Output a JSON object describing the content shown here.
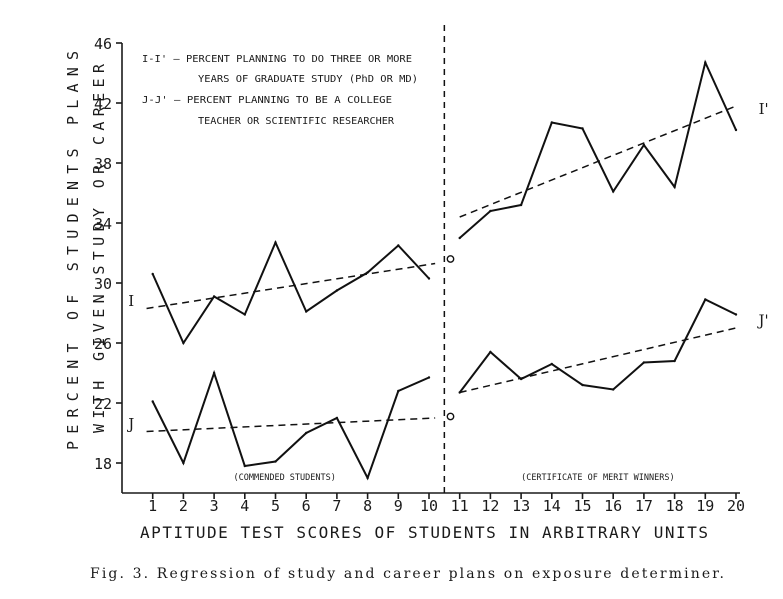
{
  "chart_data": {
    "type": "line",
    "ylabel_lines": [
      "PERCENT OF STUDENTS PLANS",
      "WITH GIVEN STUDY OR CAREER"
    ],
    "xlabel": "APTITUDE TEST SCORES OF STUDENTS IN ARBITRARY UNITS",
    "caption": "Fig. 3. Regression of study and career plans on exposure determiner.",
    "ylim": [
      16,
      46
    ],
    "yticks": [
      18,
      22,
      26,
      30,
      34,
      38,
      42,
      46
    ],
    "xlim": [
      0,
      20.3
    ],
    "xticks": [
      1,
      2,
      3,
      4,
      5,
      6,
      7,
      8,
      9,
      10,
      11,
      12,
      13,
      14,
      15,
      16,
      17,
      18,
      19,
      20
    ],
    "divider_x": 10.5,
    "legend": [
      "I-I' — PERCENT PLANNING TO DO THREE OR MORE",
      "YEARS OF GRADUATE STUDY (PhD OR MD)",
      "J-J' — PERCENT PLANNING TO BE A COLLEGE",
      "TEACHER OR SCIENTIFIC RESEARCHER"
    ],
    "group_labels": [
      {
        "text": "(COMMENDED STUDENTS)",
        "x": 5.3
      },
      {
        "text": "(CERTIFICATE OF MERIT WINNERS)",
        "x": 15.5
      }
    ],
    "series": [
      {
        "name": "I",
        "label": "I",
        "label_at": {
          "x": 0.3,
          "y": 28.8
        },
        "x": [
          1,
          2,
          3,
          4,
          5,
          6,
          7,
          8,
          9,
          10
        ],
        "values": [
          30.6,
          26.0,
          29.1,
          27.9,
          32.7,
          28.1,
          29.5,
          30.7,
          32.5,
          30.3
        ],
        "trend": [
          [
            0.8,
            28.3
          ],
          [
            10.2,
            31.3
          ]
        ]
      },
      {
        "name": "I'",
        "label": "I'",
        "label_at": {
          "x": 20.9,
          "y": 41.6
        },
        "x": [
          11,
          12,
          13,
          14,
          15,
          16,
          17,
          18,
          19,
          20
        ],
        "values": [
          33.0,
          34.8,
          35.2,
          40.7,
          40.3,
          36.1,
          39.2,
          36.4,
          44.7,
          40.2
        ],
        "trend": [
          [
            11.0,
            34.4
          ],
          [
            20.0,
            41.8
          ]
        ]
      },
      {
        "name": "J",
        "label": "J",
        "label_at": {
          "x": 0.3,
          "y": 20.6
        },
        "x": [
          1,
          2,
          3,
          4,
          5,
          6,
          7,
          8,
          9,
          10
        ],
        "values": [
          22.1,
          18.0,
          24.0,
          17.8,
          18.1,
          20.0,
          21.0,
          17.0,
          22.8,
          23.7
        ],
        "trend": [
          [
            0.8,
            20.1
          ],
          [
            10.2,
            21.0
          ]
        ]
      },
      {
        "name": "J'",
        "label": "J'",
        "label_at": {
          "x": 20.9,
          "y": 27.5
        },
        "x": [
          11,
          12,
          13,
          14,
          15,
          16,
          17,
          18,
          19,
          20
        ],
        "values": [
          22.7,
          25.4,
          23.6,
          24.6,
          23.2,
          22.9,
          24.7,
          24.8,
          28.9,
          27.9
        ],
        "trend": [
          [
            11.0,
            22.7
          ],
          [
            20.0,
            27.0
          ]
        ]
      }
    ],
    "markers": [
      {
        "name": "i-intercept-marker",
        "x": 10.7,
        "y": 31.6
      },
      {
        "name": "j-intercept-marker",
        "x": 10.7,
        "y": 21.1
      }
    ]
  }
}
